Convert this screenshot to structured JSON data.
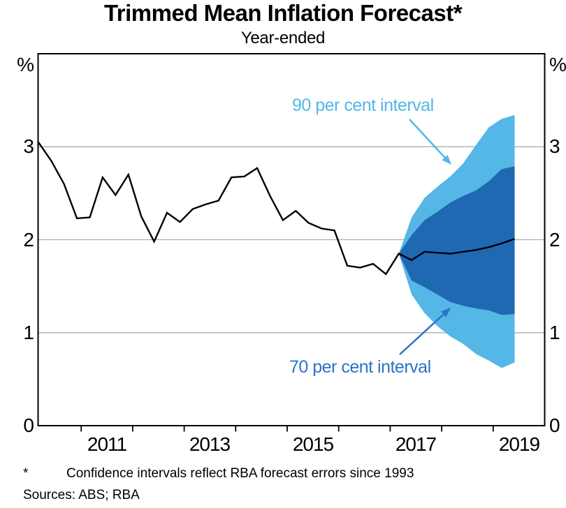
{
  "title": "Trimmed Mean Inflation Forecast*",
  "subtitle": "Year-ended",
  "annotations": {
    "band90_label": "90 per cent interval",
    "band70_label": "70 per cent interval"
  },
  "footnotes": {
    "marker": "*",
    "note": "Confidence intervals reflect RBA forecast errors since 1993",
    "sources": "Sources: ABS; RBA"
  },
  "axes": {
    "y_unit_left": "%",
    "y_unit_right": "%",
    "y_left": [
      "3",
      "2",
      "1",
      "0"
    ],
    "y_right": [
      "3",
      "2",
      "1",
      "0"
    ],
    "x_labels": [
      "2011",
      "2013",
      "2015",
      "2017",
      "2019"
    ]
  },
  "colors": {
    "band90": "#54B7E5",
    "band70": "#1F69B3",
    "label90": "#54B7E5",
    "label70": "#2B74C4",
    "line": "#000000",
    "gridline": "#ADADAD",
    "frame": "#000000"
  },
  "chart_data": {
    "type": "line",
    "title": "Trimmed Mean Inflation Forecast*",
    "subtitle": "Year-ended",
    "ylabel": "%",
    "ylim": [
      0,
      4
    ],
    "xlim": [
      2010.163,
      2020.0
    ],
    "y_gridline_values": [
      1,
      2,
      3
    ],
    "y_tick_values": [
      3,
      2,
      1,
      0
    ],
    "x_tick_years": [
      2011,
      2012,
      2013,
      2014,
      2015,
      2016,
      2017,
      2018,
      2019
    ],
    "x_label_positions": [
      2011.5,
      2013.5,
      2015.5,
      2017.5,
      2019.5
    ],
    "frequency": "quarterly",
    "history": {
      "x": [
        2010.167,
        2010.417,
        2010.667,
        2010.917,
        2011.167,
        2011.417,
        2011.667,
        2011.917,
        2012.167,
        2012.417,
        2012.667,
        2012.917,
        2013.167,
        2013.417,
        2013.667,
        2013.917,
        2014.167,
        2014.417,
        2014.667,
        2014.917,
        2015.167,
        2015.417,
        2015.667,
        2015.917,
        2016.167,
        2016.417,
        2016.667,
        2016.917,
        2017.167
      ],
      "y": [
        3.05,
        2.85,
        2.6,
        2.23,
        2.24,
        2.67,
        2.48,
        2.7,
        2.25,
        1.98,
        2.29,
        2.19,
        2.33,
        2.38,
        2.42,
        2.67,
        2.68,
        2.77,
        2.47,
        2.21,
        2.31,
        2.18,
        2.12,
        2.1,
        1.72,
        1.7,
        1.74,
        1.63,
        1.85
      ]
    },
    "forecast": {
      "x": [
        2017.167,
        2017.417,
        2017.667,
        2017.917,
        2018.167,
        2018.417,
        2018.667,
        2018.917,
        2019.167,
        2019.417
      ],
      "center": [
        1.85,
        1.78,
        1.87,
        1.86,
        1.85,
        1.87,
        1.89,
        1.92,
        1.96,
        2.01
      ],
      "band90_top": [
        1.85,
        2.24,
        2.45,
        2.57,
        2.68,
        2.82,
        3.02,
        3.21,
        3.3,
        3.34
      ],
      "band70_top": [
        1.85,
        2.05,
        2.21,
        2.3,
        2.4,
        2.47,
        2.53,
        2.63,
        2.76,
        2.79
      ],
      "band70_bottom": [
        1.85,
        1.56,
        1.49,
        1.41,
        1.33,
        1.29,
        1.26,
        1.24,
        1.19,
        1.2
      ],
      "band90_bottom": [
        1.85,
        1.41,
        1.21,
        1.07,
        0.96,
        0.88,
        0.77,
        0.7,
        0.62,
        0.68
      ]
    },
    "legend": [
      "90 per cent interval",
      "70 per cent interval"
    ],
    "legend_position": "annotated-arrows"
  }
}
